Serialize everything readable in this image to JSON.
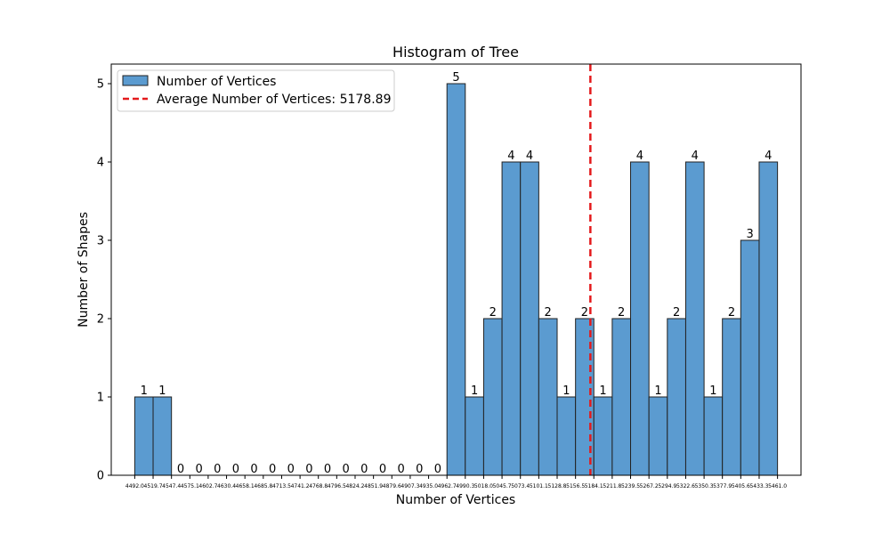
{
  "chart_data": {
    "type": "bar",
    "title": "Histogram of Tree",
    "xlabel": "Number of Vertices",
    "ylabel": "Number of Shapes",
    "ylim": [
      0,
      5.25
    ],
    "yticks": [
      0,
      1,
      2,
      3,
      4,
      5
    ],
    "bin_edges": [
      4492.0,
      4519.7,
      4547.4,
      4575.1,
      4602.7,
      4630.4,
      4658.1,
      4685.8,
      4713.5,
      4741.2,
      4768.8,
      4796.5,
      4824.2,
      4851.9,
      4879.6,
      4907.3,
      4935.0,
      4962.7,
      4990.3,
      5018.0,
      5045.7,
      5073.4,
      5101.1,
      5128.8,
      5156.5,
      5184.1,
      5211.8,
      5239.5,
      5267.2,
      5294.9,
      5322.6,
      5350.3,
      5377.9,
      5405.6,
      5433.3,
      5461.0
    ],
    "xtick_labels": [
      "4492.0",
      "4519.7",
      "4547.4",
      "4575.1",
      "4602.7",
      "4630.4",
      "4658.1",
      "4685.8",
      "4713.5",
      "4741.2",
      "4768.8",
      "4796.5",
      "4824.2",
      "4851.9",
      "4879.6",
      "4907.3",
      "4935.0",
      "4962.7",
      "4990.3",
      "5018.0",
      "5045.7",
      "5073.4",
      "5101.1",
      "5128.8",
      "5156.5",
      "5184.1",
      "5211.8",
      "5239.5",
      "5267.2",
      "5294.9",
      "5322.6",
      "5350.3",
      "5377.9",
      "5405.6",
      "5433.3",
      "5461.0"
    ],
    "counts": [
      1,
      1,
      0,
      0,
      0,
      0,
      0,
      0,
      0,
      0,
      0,
      0,
      0,
      0,
      0,
      0,
      0,
      5,
      1,
      2,
      4,
      4,
      2,
      1,
      2,
      1,
      2,
      4,
      1,
      2,
      4,
      1,
      2,
      3,
      4
    ],
    "series": [
      {
        "name": "Number of Vertices",
        "color": "#5b9bd0"
      }
    ],
    "average_line": {
      "label": "Average Number of Vertices: 5178.89",
      "value": 5178.89,
      "color": "#e41a1c"
    },
    "legend_position": "top-left",
    "grid": false
  }
}
